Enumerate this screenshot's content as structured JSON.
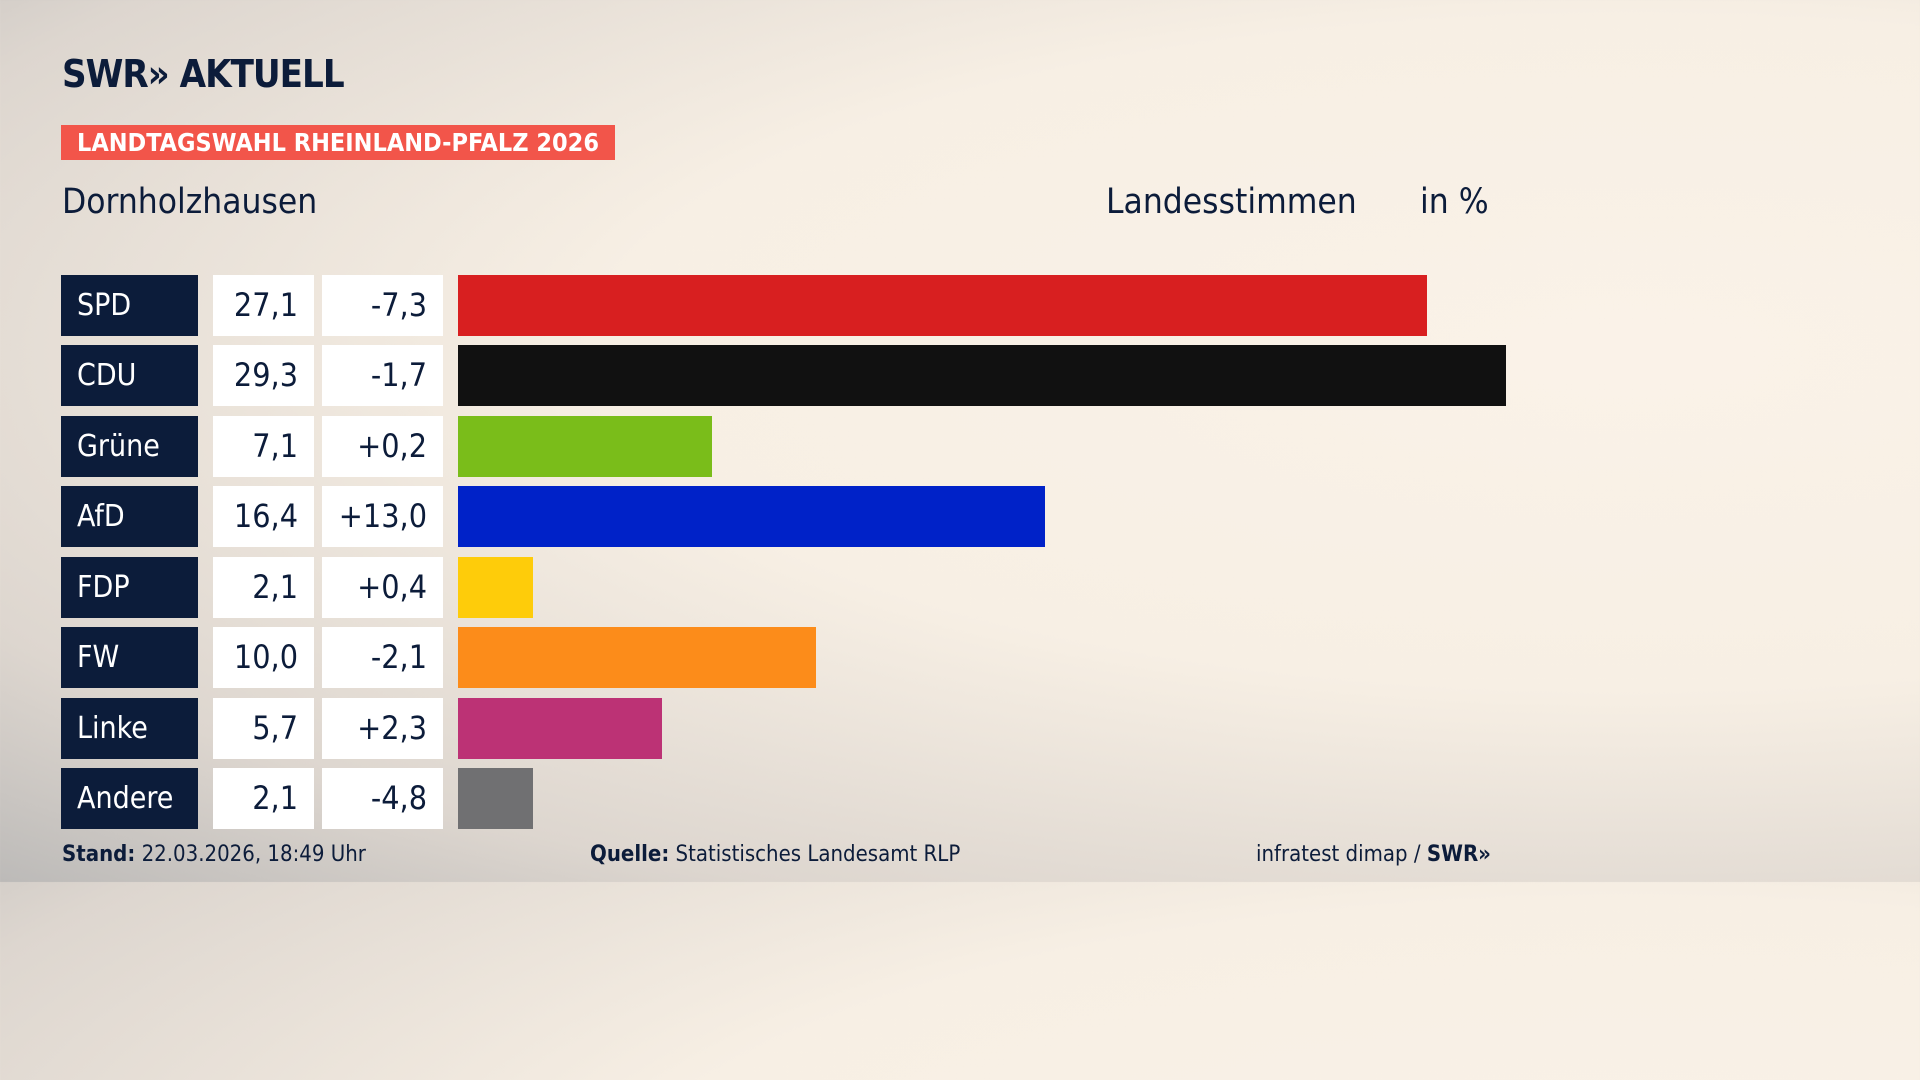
{
  "header": {
    "logo": "SWR» AKTUELL",
    "kicker": "LANDTAGSWAHL RHEINLAND-PFALZ 2026",
    "region": "Dornholzhausen",
    "measure": "Landesstimmen",
    "unit": "in %"
  },
  "chart_data": {
    "type": "bar",
    "orientation": "horizontal",
    "categories": [
      "SPD",
      "CDU",
      "Grüne",
      "AfD",
      "FDP",
      "FW",
      "Linke",
      "Andere"
    ],
    "values": [
      27.1,
      29.3,
      7.1,
      16.4,
      2.1,
      10.0,
      5.7,
      2.1
    ],
    "value_labels": [
      "27,1",
      "29,3",
      "7,1",
      "16,4",
      "2,1",
      "10,0",
      "5,7",
      "2,1"
    ],
    "diff_labels": [
      "-7,3",
      "-1,7",
      "+0,2",
      "+13,0",
      "+0,4",
      "-2,1",
      "+2,3",
      "-4,8"
    ],
    "colors": [
      "#d81f20",
      "#111111",
      "#7abd1a",
      "#0022c8",
      "#fecc0a",
      "#fc8c1a",
      "#bc3275",
      "#707072"
    ],
    "xlim": [
      0,
      29.3
    ],
    "grid": false
  },
  "footer": {
    "stand_label": "Stand:",
    "stand": "22.03.2026, 18:49 Uhr",
    "source_label": "Quelle:",
    "source": "Statistisches Landesamt RLP",
    "credit": "infratest dimap / ",
    "credit_logo": "SWR»"
  }
}
